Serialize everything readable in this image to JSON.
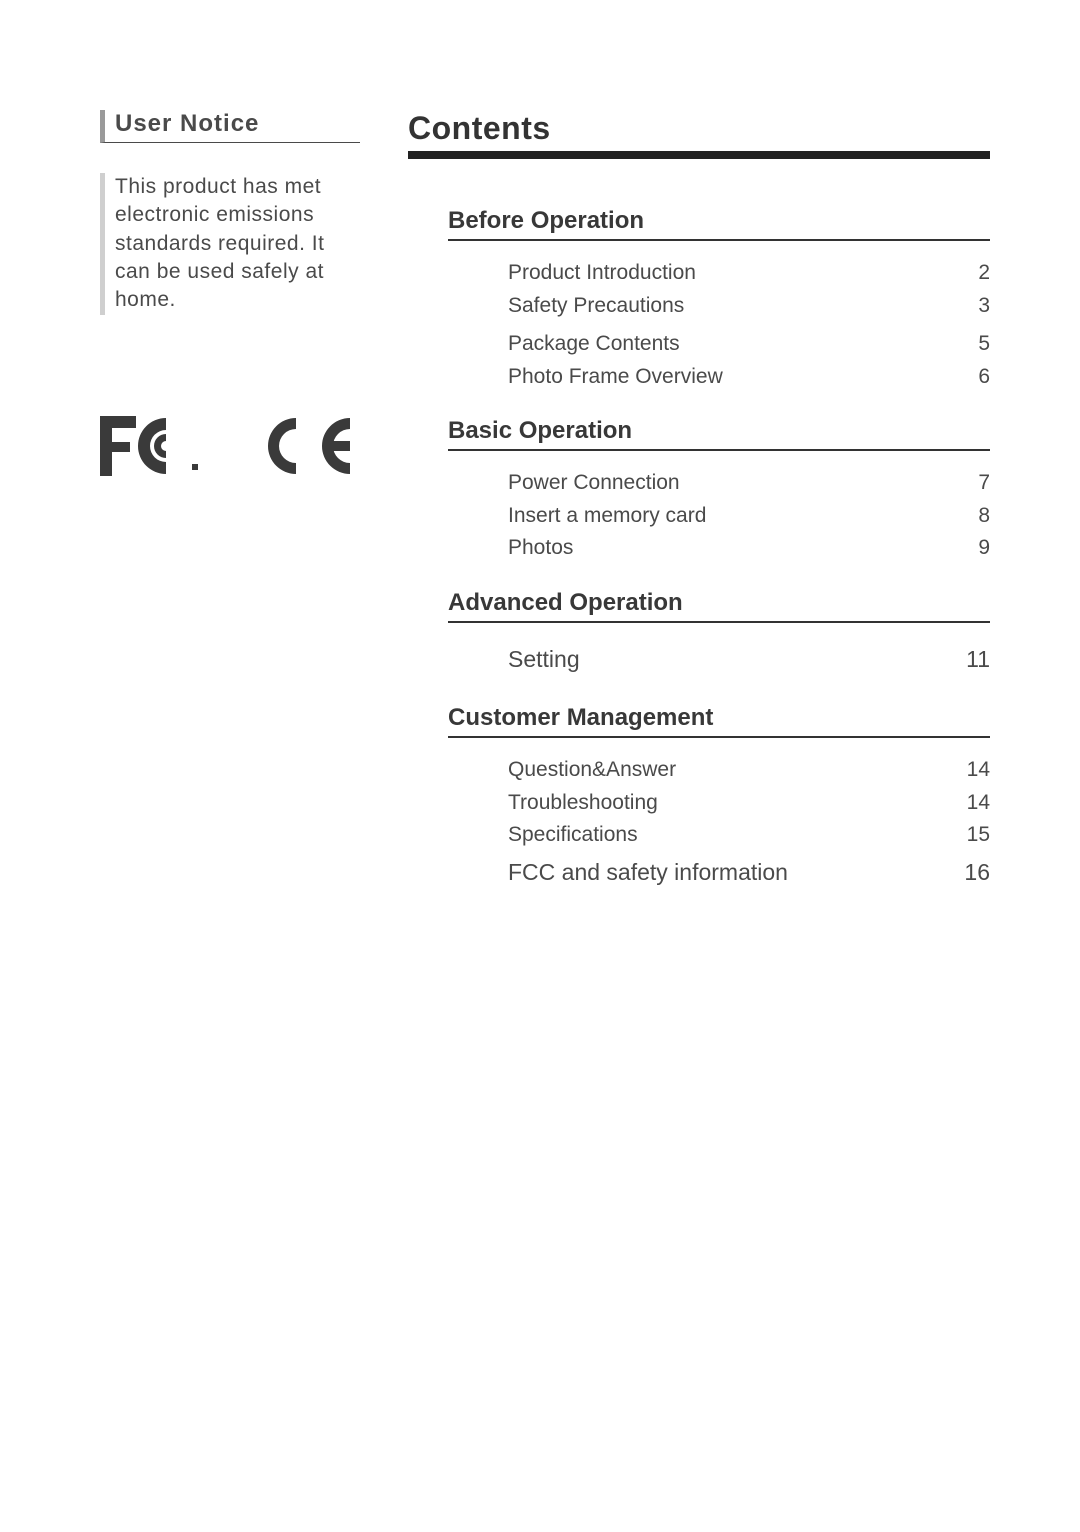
{
  "left": {
    "heading": "User Notice",
    "body": "This product has met electronic emissions standards required. It can be used safely at home."
  },
  "contents": {
    "heading": "Contents",
    "sections": [
      {
        "title": "Before Operation",
        "items": [
          {
            "label": "Product Introduction",
            "page": "2",
            "big": false
          },
          {
            "label": "Safety Precautions",
            "page": "3",
            "big": false
          },
          {
            "label": "Package Contents",
            "page": "5",
            "big": false
          },
          {
            "label": "Photo Frame Overview",
            "page": "6",
            "big": false
          }
        ]
      },
      {
        "title": "Basic Operation",
        "items": [
          {
            "label": "Power Connection",
            "page": "7",
            "big": false
          },
          {
            "label": "Insert a memory card",
            "page": "8",
            "big": false
          },
          {
            "label": "Photos",
            "page": "9",
            "big": false
          }
        ]
      },
      {
        "title": "Advanced Operation",
        "items": [
          {
            "label": "Setting",
            "page": "11",
            "big": true
          }
        ]
      },
      {
        "title": "Customer Management",
        "items": [
          {
            "label": "Question&Answer",
            "page": "14",
            "big": false
          },
          {
            "label": "Troubleshooting",
            "page": "14",
            "big": false
          },
          {
            "label": "Specifications",
            "page": "15",
            "big": false
          },
          {
            "label": "FCC and safety information",
            "page": "16",
            "big": true
          }
        ]
      }
    ]
  },
  "colors": {
    "text": "#4a4a4a",
    "heading_dark": "#333333",
    "rule_thick": "#222222",
    "rule_thin": "#333333",
    "notice_bar_dark": "#9a9a9a",
    "notice_bar_light": "#cfcfcf",
    "background": "#ffffff"
  },
  "typography": {
    "body_fontsize": 21,
    "section_title_fontsize": 24,
    "contents_heading_fontsize": 32,
    "big_row_fontsize": 23
  }
}
